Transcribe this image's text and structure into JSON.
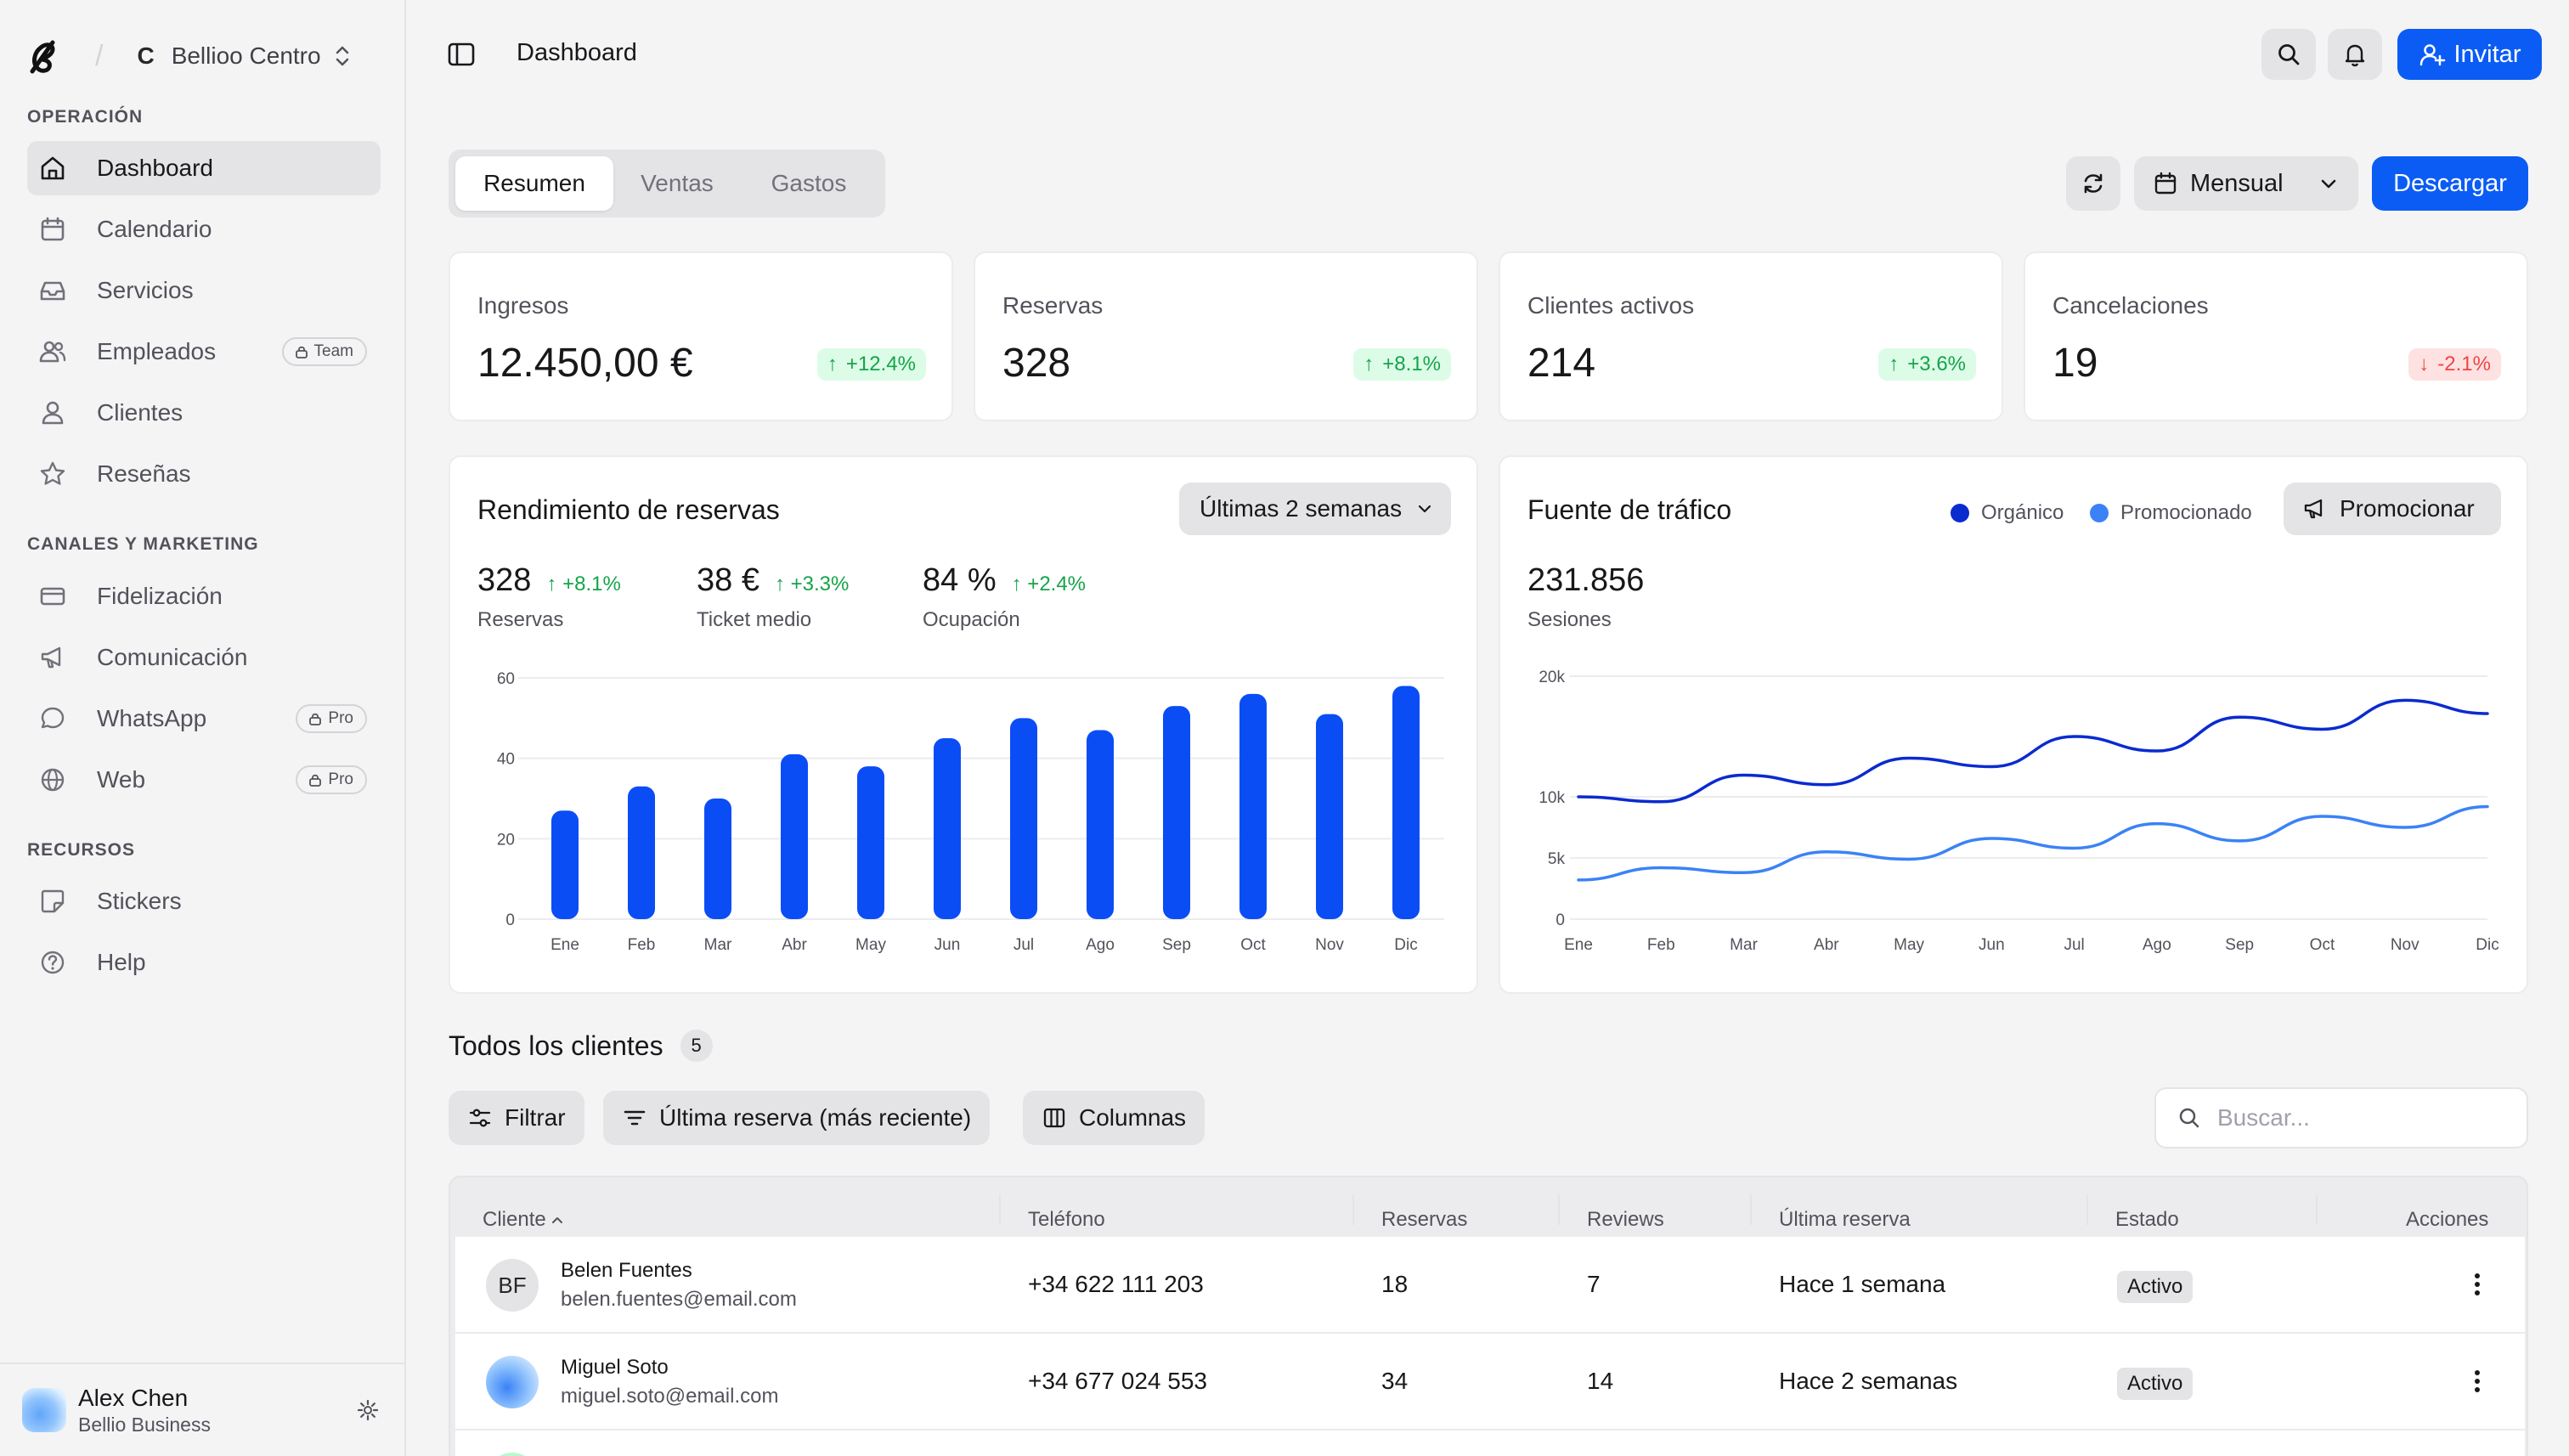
{
  "sidebar": {
    "brand_initial": "C",
    "brand_name": "Bellioo Centro",
    "sections": {
      "operacion": "OPERACIÓN",
      "canales": "CANALES Y MARKETING",
      "recursos": "RECURSOS"
    },
    "items": [
      {
        "label": "Dashboard",
        "icon": "home-icon",
        "active": true
      },
      {
        "label": "Calendario",
        "icon": "calendar-icon"
      },
      {
        "label": "Servicios",
        "icon": "inbox-icon"
      },
      {
        "label": "Empleados",
        "icon": "users-icon",
        "badge": "Team"
      },
      {
        "label": "Clientes",
        "icon": "user-icon"
      },
      {
        "label": "Reseñas",
        "icon": "star-icon"
      },
      {
        "label": "Fidelización",
        "icon": "card-icon"
      },
      {
        "label": "Comunicación",
        "icon": "megaphone-icon"
      },
      {
        "label": "WhatsApp",
        "icon": "chat-icon",
        "badge": "Pro"
      },
      {
        "label": "Web",
        "icon": "globe-icon",
        "badge": "Pro"
      },
      {
        "label": "Stickers",
        "icon": "sticker-icon"
      },
      {
        "label": "Help",
        "icon": "help-icon"
      }
    ],
    "user": {
      "name": "Alex Chen",
      "plan": "Bellio Business"
    }
  },
  "header": {
    "title": "Dashboard",
    "invite_label": "Invitar"
  },
  "tabs": [
    {
      "label": "Resumen",
      "active": true
    },
    {
      "label": "Ventas"
    },
    {
      "label": "Gastos"
    }
  ],
  "toolbar": {
    "period": "Mensual",
    "download_label": "Descargar"
  },
  "kpis": [
    {
      "label": "Ingresos",
      "value": "12.450,00 €",
      "delta": "+12.4%",
      "trend": "up"
    },
    {
      "label": "Reservas",
      "value": "328",
      "delta": "+8.1%",
      "trend": "up"
    },
    {
      "label": "Clientes activos",
      "value": "214",
      "delta": "+3.6%",
      "trend": "up"
    },
    {
      "label": "Cancelaciones",
      "value": "19",
      "delta": "-2.1%",
      "trend": "down"
    }
  ],
  "bookings_card": {
    "title": "Rendimiento de reservas",
    "range": "Últimas 2 semanas",
    "metrics": [
      {
        "value": "328",
        "delta": "+8.1%",
        "label": "Reservas"
      },
      {
        "value": "38 €",
        "delta": "+3.3%",
        "label": "Ticket medio"
      },
      {
        "value": "84 %",
        "delta": "+2.4%",
        "label": "Ocupación"
      }
    ]
  },
  "traffic_card": {
    "title": "Fuente de tráfico",
    "promote_label": "Promocionar",
    "total": "231.856",
    "total_label": "Sesiones"
  },
  "chart_data": [
    {
      "type": "bar",
      "categories": [
        "Ene",
        "Feb",
        "Mar",
        "Abr",
        "May",
        "Jun",
        "Jul",
        "Ago",
        "Sep",
        "Oct",
        "Nov",
        "Dic"
      ],
      "values": [
        27,
        33,
        30,
        41,
        38,
        45,
        50,
        47,
        53,
        56,
        51,
        58
      ],
      "ylim": [
        0,
        60
      ],
      "yticks": [
        "0",
        "20",
        "40",
        "60"
      ],
      "color": "#0b4df5",
      "grid": true
    },
    {
      "type": "line",
      "categories": [
        "Ene",
        "Feb",
        "Mar",
        "Abr",
        "May",
        "Jun",
        "Jul",
        "Ago",
        "Sep",
        "Oct",
        "Nov",
        "Dic"
      ],
      "series": [
        {
          "name": "Orgánico",
          "color": "#0a2bd0",
          "values": [
            10000,
            9600,
            11800,
            11000,
            13200,
            12500,
            15000,
            13800,
            16600,
            15600,
            18000,
            16900
          ]
        },
        {
          "name": "Promocionado",
          "color": "#3b82f6",
          "values": [
            3200,
            4200,
            3800,
            5500,
            4900,
            6600,
            5800,
            7800,
            6400,
            8400,
            7500,
            9200
          ]
        }
      ],
      "yticks": [
        {
          "label": "0",
          "value": 0
        },
        {
          "label": "5k",
          "value": 5000
        },
        {
          "label": "10k",
          "value": 10000
        },
        {
          "label": "20k",
          "value": 20000
        }
      ],
      "legend": "top-right",
      "grid": true
    }
  ],
  "clients": {
    "title": "Todos los clientes",
    "count": "5",
    "filter_label": "Filtrar",
    "sort_label": "Última reserva (más reciente)",
    "columns_label": "Columnas",
    "search_placeholder": "Buscar...",
    "headers": [
      "Cliente",
      "Teléfono",
      "Reservas",
      "Reviews",
      "Última reserva",
      "Estado",
      "Acciones"
    ],
    "rows": [
      {
        "initials": "BF",
        "name": "Belen Fuentes",
        "email": "belen.fuentes@email.com",
        "phone": "+34 622 111 203",
        "bookings": "18",
        "reviews": "7",
        "last": "Hace 1 semana",
        "status": "Activo"
      },
      {
        "initials": "",
        "name": "Miguel Soto",
        "email": "miguel.soto@email.com",
        "phone": "+34 677 024 553",
        "bookings": "34",
        "reviews": "14",
        "last": "Hace 2 semanas",
        "status": "Activo"
      }
    ]
  }
}
